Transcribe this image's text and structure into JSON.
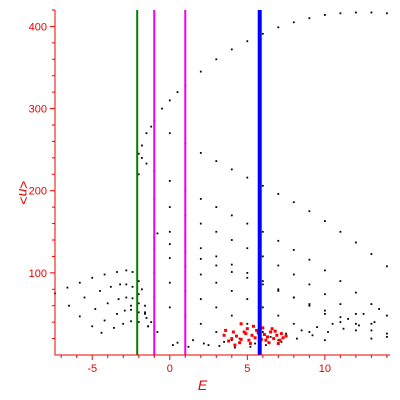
{
  "chart_data": {
    "type": "scatter",
    "title": "",
    "xlabel": "E",
    "ylabel": "<n>",
    "xlim": [
      -7.4,
      14.2
    ],
    "ylim": [
      0,
      420
    ],
    "x_ticks": [
      -5,
      0,
      5,
      10
    ],
    "x_tick_labels": [
      "-5",
      "0",
      "5",
      "10"
    ],
    "y_ticks": [
      100,
      200,
      300,
      400
    ],
    "y_tick_labels": [
      "100",
      "200",
      "300",
      "400"
    ],
    "grid": false,
    "legend": "none",
    "colors": {
      "axis": "#ee0000",
      "points": "#000000",
      "highlight": "#ff0000",
      "line_green": "#008000",
      "line_magenta": "#ee00ee",
      "line_blue": "#0000ff"
    },
    "vertical_lines": [
      {
        "x": -2.1,
        "color": "#008000"
      },
      {
        "x": -1.0,
        "color": "#ee00ee"
      },
      {
        "x": 1.0,
        "color": "#ee00ee"
      },
      {
        "x": 5.8,
        "color": "#0000ff"
      }
    ],
    "series": [
      {
        "color": "#000000",
        "points": [
          [
            -7.4,
            75
          ],
          [
            -6.6,
            82
          ],
          [
            -5.8,
            88
          ],
          [
            -5.0,
            94
          ],
          [
            -4.2,
            98
          ],
          [
            -3.4,
            101
          ],
          [
            -2.8,
            103
          ],
          [
            -2.4,
            101
          ],
          [
            -2.0,
            90
          ],
          [
            -1.8,
            80
          ],
          [
            -1.6,
            50
          ],
          [
            -1.4,
            35
          ],
          [
            -1.0,
            25
          ],
          [
            -6.5,
            60
          ],
          [
            -5.5,
            70
          ],
          [
            -4.5,
            78
          ],
          [
            -3.8,
            83
          ],
          [
            -3.2,
            86
          ],
          [
            -2.8,
            86
          ],
          [
            -2.4,
            83
          ],
          [
            -2.0,
            74
          ],
          [
            -1.6,
            60
          ],
          [
            -5.8,
            47
          ],
          [
            -4.8,
            56
          ],
          [
            -4.0,
            63
          ],
          [
            -3.3,
            68
          ],
          [
            -2.8,
            70
          ],
          [
            -2.4,
            69
          ],
          [
            -2.0,
            63
          ],
          [
            -1.6,
            52
          ],
          [
            -1.2,
            40
          ],
          [
            -5.0,
            35
          ],
          [
            -4.2,
            42
          ],
          [
            -3.4,
            50
          ],
          [
            -2.9,
            54
          ],
          [
            -2.5,
            55
          ],
          [
            -2.0,
            52
          ],
          [
            -1.5,
            45
          ],
          [
            -1.0,
            35
          ],
          [
            -4.4,
            27
          ],
          [
            -3.6,
            33
          ],
          [
            -3.0,
            38
          ],
          [
            -2.5,
            41
          ],
          [
            -2.0,
            40
          ],
          [
            -1.4,
            35
          ],
          [
            -0.8,
            28
          ],
          [
            -2.0,
            245
          ],
          [
            -1.8,
            240
          ],
          [
            -1.5,
            233
          ],
          [
            -1.0,
            224
          ],
          [
            0.0,
            212
          ],
          [
            1.0,
            200
          ],
          [
            2.0,
            190
          ],
          [
            3.0,
            180
          ],
          [
            4.0,
            170
          ],
          [
            5.0,
            160
          ],
          [
            6.0,
            150
          ],
          [
            7.0,
            139
          ],
          [
            8.0,
            128
          ],
          [
            9.0,
            116
          ],
          [
            10.0,
            103
          ],
          [
            11.0,
            90
          ],
          [
            12.0,
            76
          ],
          [
            13.0,
            62
          ],
          [
            14.0,
            48
          ],
          [
            -1.0,
            285
          ],
          [
            0.0,
            270
          ],
          [
            1.0,
            258
          ],
          [
            2.0,
            246
          ],
          [
            3.0,
            236
          ],
          [
            4.0,
            226
          ],
          [
            5.0,
            216
          ],
          [
            6.0,
            206
          ],
          [
            7.0,
            196
          ],
          [
            8.0,
            186
          ],
          [
            9.0,
            175
          ],
          [
            10.0,
            163
          ],
          [
            11.0,
            150
          ],
          [
            12.0,
            137
          ],
          [
            13.0,
            123
          ],
          [
            14.0,
            108
          ],
          [
            -0.8,
            148
          ],
          [
            0.0,
            135
          ],
          [
            1.0,
            125
          ],
          [
            2.0,
            117
          ],
          [
            3.0,
            109
          ],
          [
            4.0,
            101
          ],
          [
            5.0,
            94
          ],
          [
            6.0,
            86
          ],
          [
            7.0,
            78
          ],
          [
            8.0,
            70
          ],
          [
            9.0,
            62
          ],
          [
            10.0,
            54
          ],
          [
            11.0,
            46
          ],
          [
            12.0,
            38
          ],
          [
            13.0,
            30
          ],
          [
            14.0,
            22
          ],
          [
            -2.5,
            60
          ],
          [
            -2.0,
            220
          ],
          [
            -1.8,
            255
          ],
          [
            -1.5,
            270
          ],
          [
            -1.2,
            278
          ],
          [
            -1.0,
            285
          ],
          [
            -0.5,
            300
          ],
          [
            0.0,
            310
          ],
          [
            0.5,
            320
          ],
          [
            1.0,
            328
          ],
          [
            2.0,
            345
          ],
          [
            3.0,
            360
          ],
          [
            4.0,
            372
          ],
          [
            5.0,
            382
          ],
          [
            6.0,
            391
          ],
          [
            7.0,
            399
          ],
          [
            8.0,
            405
          ],
          [
            9.0,
            410
          ],
          [
            10.0,
            414
          ],
          [
            11.0,
            416
          ],
          [
            12.0,
            417
          ],
          [
            13.0,
            417
          ],
          [
            14.0,
            416
          ],
          [
            -1.0,
            190
          ],
          [
            0.0,
            180
          ],
          [
            1.0,
            170
          ],
          [
            2.0,
            160
          ],
          [
            3.0,
            150
          ],
          [
            4.0,
            140
          ],
          [
            5.0,
            130
          ],
          [
            6.0,
            120
          ],
          [
            7.0,
            109
          ],
          [
            8.0,
            98
          ],
          [
            9.0,
            86
          ],
          [
            10.0,
            74
          ],
          [
            11.0,
            62
          ],
          [
            12.0,
            50
          ],
          [
            13.0,
            38
          ],
          [
            14.0,
            26
          ],
          [
            -1.0,
            160
          ],
          [
            0.0,
            150
          ],
          [
            1.0,
            140
          ],
          [
            2.0,
            130
          ],
          [
            3.0,
            120
          ],
          [
            4.0,
            110
          ],
          [
            5.0,
            100
          ],
          [
            6.0,
            90
          ],
          [
            7.0,
            80
          ],
          [
            8.0,
            70
          ],
          [
            9.0,
            60
          ],
          [
            10.0,
            50
          ],
          [
            11.0,
            40
          ],
          [
            12.0,
            30
          ],
          [
            13.0,
            20
          ],
          [
            -1.0,
            130
          ],
          [
            0.0,
            118
          ],
          [
            1.0,
            108
          ],
          [
            2.0,
            98
          ],
          [
            3.0,
            88
          ],
          [
            4.0,
            78
          ],
          [
            5.0,
            68
          ],
          [
            6.0,
            58
          ],
          [
            7.0,
            48
          ],
          [
            8.0,
            38
          ],
          [
            9.0,
            28
          ],
          [
            10.0,
            18
          ],
          [
            -1.0,
            100
          ],
          [
            0.0,
            88
          ],
          [
            1.0,
            78
          ],
          [
            2.0,
            68
          ],
          [
            3.0,
            58
          ],
          [
            4.0,
            48
          ],
          [
            5.0,
            38
          ],
          [
            6.0,
            28
          ],
          [
            7.0,
            18
          ],
          [
            -1.0,
            70
          ],
          [
            0.0,
            58
          ],
          [
            1.0,
            48
          ],
          [
            2.0,
            38
          ],
          [
            3.0,
            28
          ],
          [
            4.0,
            18
          ],
          [
            0.5,
            15
          ],
          [
            1.5,
            18
          ],
          [
            2.5,
            12
          ],
          [
            3.5,
            16
          ],
          [
            4.5,
            20
          ],
          [
            5.5,
            14
          ],
          [
            6.5,
            22
          ],
          [
            7.5,
            26
          ],
          [
            8.5,
            30
          ],
          [
            9.5,
            34
          ],
          [
            10.5,
            38
          ],
          [
            11.5,
            44
          ],
          [
            12.5,
            50
          ],
          [
            13.5,
            56
          ],
          [
            0.2,
            12
          ],
          [
            1.2,
            10
          ],
          [
            2.2,
            14
          ],
          [
            3.2,
            11
          ],
          [
            4.2,
            9
          ],
          [
            5.2,
            10
          ],
          [
            6.2,
            12
          ],
          [
            7.2,
            16
          ],
          [
            8.2,
            20
          ],
          [
            9.2,
            24
          ],
          [
            10.2,
            28
          ],
          [
            11.2,
            32
          ],
          [
            12.2,
            36
          ],
          [
            13.2,
            40
          ]
        ]
      },
      {
        "color": "#ff0000",
        "points": [
          [
            4.0,
            20
          ],
          [
            4.3,
            23
          ],
          [
            4.6,
            19
          ],
          [
            4.9,
            26
          ],
          [
            5.1,
            18
          ],
          [
            5.3,
            24
          ],
          [
            5.5,
            21
          ],
          [
            5.7,
            27
          ],
          [
            5.9,
            19
          ],
          [
            6.1,
            25
          ],
          [
            6.3,
            22
          ],
          [
            6.5,
            28
          ],
          [
            6.7,
            20
          ],
          [
            6.9,
            24
          ],
          [
            7.1,
            18
          ],
          [
            7.3,
            21
          ],
          [
            7.5,
            23
          ],
          [
            4.5,
            15
          ],
          [
            4.8,
            28
          ],
          [
            5.0,
            32
          ],
          [
            5.2,
            14
          ],
          [
            5.6,
            30
          ],
          [
            6.0,
            33
          ],
          [
            6.4,
            15
          ],
          [
            6.8,
            29
          ],
          [
            7.2,
            26
          ],
          [
            3.8,
            17
          ],
          [
            4.1,
            28
          ],
          [
            5.4,
            35
          ],
          [
            6.2,
            18
          ],
          [
            6.6,
            32
          ],
          [
            7.0,
            14
          ],
          [
            4.6,
            38
          ],
          [
            3.5,
            24
          ],
          [
            3.6,
            30
          ],
          [
            4.2,
            12
          ],
          [
            5.8,
            11
          ]
        ]
      }
    ]
  }
}
